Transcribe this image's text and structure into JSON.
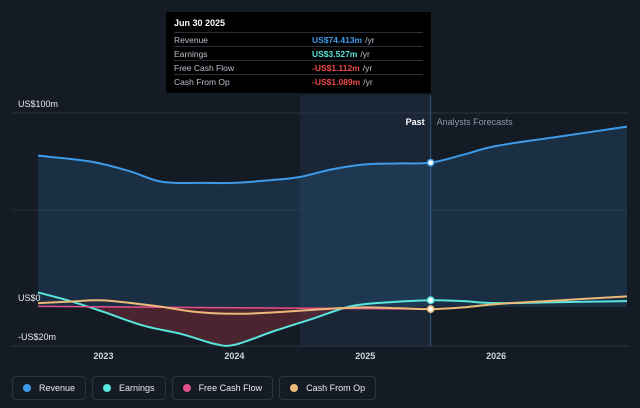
{
  "chart_data": {
    "type": "line",
    "y_unit_prefix": "US$",
    "y_suffix": "m",
    "ylim": [
      -20,
      100
    ],
    "y_tick_labels": [
      {
        "value": 100,
        "label": "US$100m"
      },
      {
        "value": 0,
        "label": "US$0"
      },
      {
        "value": -20,
        "label": "-US$20m"
      }
    ],
    "x_range": [
      2022.5,
      2027.0
    ],
    "x_ticks": [
      {
        "value": 2023,
        "label": "2023"
      },
      {
        "value": 2024,
        "label": "2024"
      },
      {
        "value": 2025,
        "label": "2025"
      },
      {
        "value": 2026,
        "label": "2026"
      }
    ],
    "divider_x": 2025.5,
    "highlight_from_x": 2024.5,
    "period_labels": {
      "past": "Past",
      "forecast": "Analysts Forecasts"
    },
    "series": [
      {
        "name": "Revenue",
        "color": "#3d9be9",
        "fill": true,
        "points": [
          [
            2022.5,
            78
          ],
          [
            2022.9,
            75
          ],
          [
            2023.2,
            70
          ],
          [
            2023.45,
            64.5
          ],
          [
            2023.8,
            64
          ],
          [
            2024.0,
            64
          ],
          [
            2024.3,
            65.5
          ],
          [
            2024.5,
            67
          ],
          [
            2024.75,
            71
          ],
          [
            2025.0,
            73.5
          ],
          [
            2025.25,
            74
          ],
          [
            2025.5,
            74.4
          ],
          [
            2025.75,
            78.5
          ],
          [
            2026.0,
            83
          ],
          [
            2026.5,
            88
          ],
          [
            2027.0,
            93
          ]
        ]
      },
      {
        "name": "Earnings",
        "color": "#58e6dc",
        "fill": false,
        "points": [
          [
            2022.5,
            7.5
          ],
          [
            2022.75,
            3
          ],
          [
            2023.0,
            -2.5
          ],
          [
            2023.3,
            -9.5
          ],
          [
            2023.6,
            -14
          ],
          [
            2023.85,
            -19
          ],
          [
            2024.0,
            -19.5
          ],
          [
            2024.3,
            -12.5
          ],
          [
            2024.6,
            -6
          ],
          [
            2024.9,
            0.5
          ],
          [
            2025.2,
            2.5
          ],
          [
            2025.5,
            3.5
          ],
          [
            2025.75,
            3
          ],
          [
            2026.0,
            2
          ],
          [
            2026.5,
            2.5
          ],
          [
            2027.0,
            3
          ]
        ]
      },
      {
        "name": "Free Cash Flow",
        "color": "#e0508a",
        "fill": false,
        "points": [
          [
            2022.5,
            0.3
          ],
          [
            2025.5,
            -1.1
          ]
        ]
      },
      {
        "name": "Cash From Op",
        "color": "#ecb978",
        "fill": false,
        "points": [
          [
            2022.5,
            2
          ],
          [
            2022.75,
            2.8
          ],
          [
            2023.0,
            3.4
          ],
          [
            2023.4,
            0.5
          ],
          [
            2023.7,
            -2.5
          ],
          [
            2024.0,
            -3.5
          ],
          [
            2024.3,
            -2.8
          ],
          [
            2024.7,
            -1
          ],
          [
            2025.0,
            -0.2
          ],
          [
            2025.25,
            -0.6
          ],
          [
            2025.5,
            -1.1
          ],
          [
            2025.75,
            -0.2
          ],
          [
            2026.0,
            1.5
          ],
          [
            2026.5,
            3.5
          ],
          [
            2027.0,
            5.5
          ]
        ]
      }
    ],
    "markers": [
      {
        "series": "Revenue",
        "x": 2025.5,
        "y": 74.4
      },
      {
        "series": "Earnings",
        "x": 2025.5,
        "y": 3.5
      },
      {
        "series": "Cash From Op",
        "x": 2025.5,
        "y": -1.1
      }
    ],
    "negative_fill_color": "#7a2c3a"
  },
  "tooltip": {
    "date": "Jun 30 2025",
    "rows": [
      {
        "name": "Revenue",
        "value": "US$74.413m",
        "unit": "/yr",
        "color": "#3d9be9"
      },
      {
        "name": "Earnings",
        "value": "US$3.527m",
        "unit": "/yr",
        "color": "#58e6dc"
      },
      {
        "name": "Free Cash Flow",
        "value": "-US$1.112m",
        "unit": "/yr",
        "color": "#ee4b4b"
      },
      {
        "name": "Cash From Op",
        "value": "-US$1.089m",
        "unit": "/yr",
        "color": "#ee4b4b"
      }
    ]
  },
  "legend": [
    {
      "label": "Revenue",
      "color": "#3d9be9"
    },
    {
      "label": "Earnings",
      "color": "#58e6dc"
    },
    {
      "label": "Free Cash Flow",
      "color": "#e0508a"
    },
    {
      "label": "Cash From Op",
      "color": "#ecb978"
    }
  ]
}
